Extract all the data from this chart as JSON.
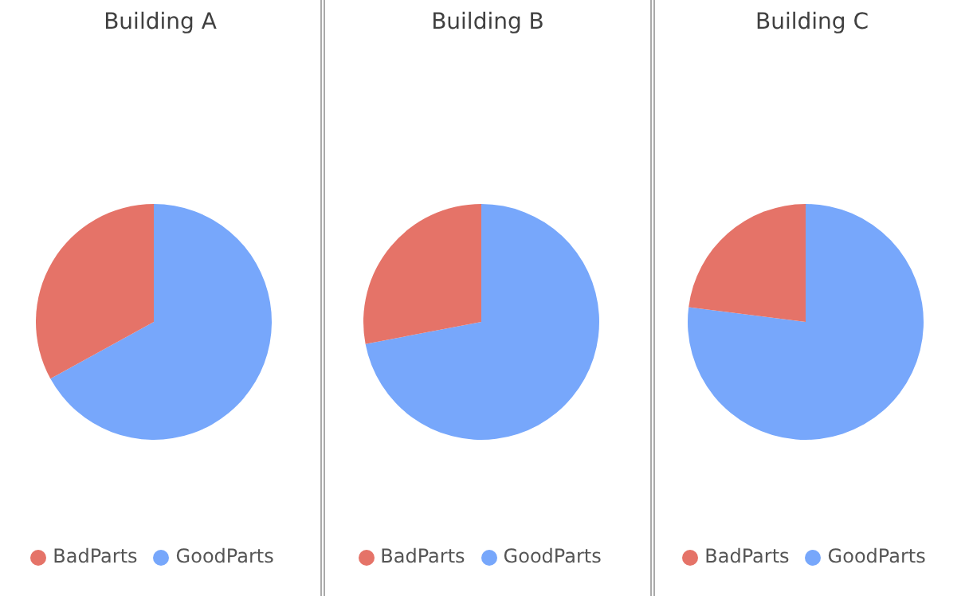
{
  "chart_data": [
    {
      "type": "pie",
      "title": "Building A",
      "categories": [
        "GoodParts",
        "BadParts"
      ],
      "values": [
        67,
        33
      ],
      "colors": [
        "#77a7fb",
        "#e57368"
      ],
      "legend": "bottom"
    },
    {
      "type": "pie",
      "title": "Building B",
      "categories": [
        "GoodParts",
        "BadParts"
      ],
      "values": [
        72,
        28
      ],
      "colors": [
        "#77a7fb",
        "#e57368"
      ],
      "legend": "bottom"
    },
    {
      "type": "pie",
      "title": "Building C",
      "categories": [
        "GoodParts",
        "BadParts"
      ],
      "values": [
        77,
        23
      ],
      "colors": [
        "#77a7fb",
        "#e57368"
      ],
      "legend": "bottom"
    }
  ]
}
